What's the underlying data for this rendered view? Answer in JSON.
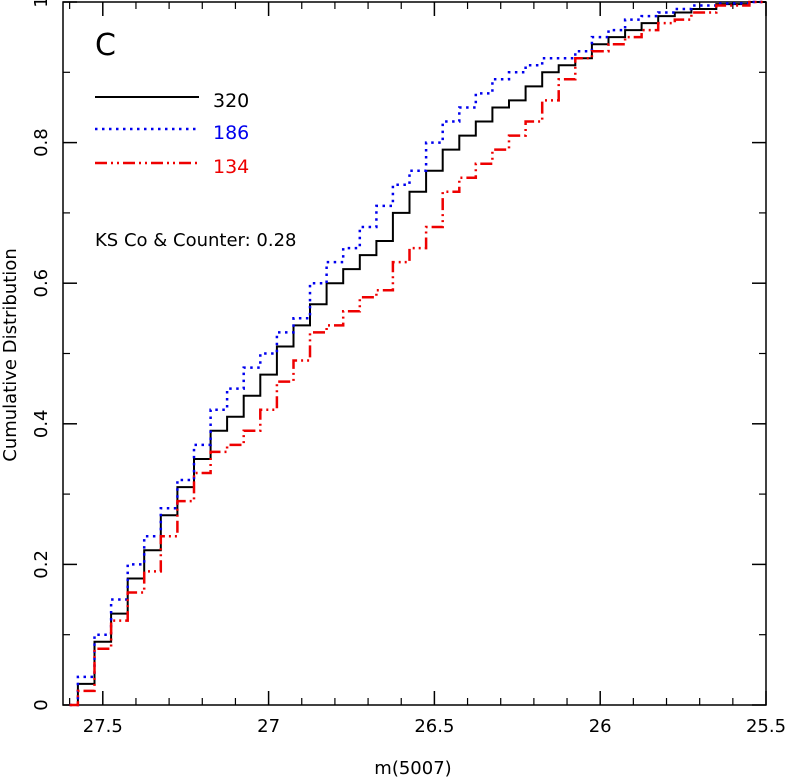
{
  "chart_data": {
    "type": "line",
    "panel_label": "C",
    "xlabel": "m(5007)",
    "ylabel": "Cumulative Distribution",
    "xlim": [
      27.62,
      25.5
    ],
    "ylim": [
      0,
      1.0
    ],
    "x_ticks": [
      27.5,
      27,
      26.5,
      26,
      25.5
    ],
    "x_tick_labels": [
      "27.5",
      "27",
      "26.5",
      "26",
      "25.5"
    ],
    "y_ticks": [
      0,
      0.2,
      0.4,
      0.6,
      0.8,
      1
    ],
    "y_tick_labels": [
      "0",
      "0.2",
      "0.4",
      "0.6",
      "0.8",
      "1"
    ],
    "annotation": "KS Co & Counter: 0.28",
    "legend_position": "top-left",
    "series": [
      {
        "name": "320",
        "color": "#000000",
        "dash": "solid",
        "x": [
          27.6,
          27.55,
          27.5,
          27.45,
          27.4,
          27.35,
          27.3,
          27.25,
          27.2,
          27.15,
          27.1,
          27.05,
          27.0,
          26.95,
          26.9,
          26.85,
          26.8,
          26.75,
          26.7,
          26.65,
          26.6,
          26.55,
          26.5,
          26.45,
          26.4,
          26.35,
          26.3,
          26.25,
          26.2,
          26.15,
          26.1,
          26.05,
          26.0,
          25.95,
          25.9,
          25.85,
          25.8,
          25.75,
          25.7,
          25.6,
          25.5
        ],
        "y": [
          0.0,
          0.03,
          0.09,
          0.13,
          0.18,
          0.22,
          0.27,
          0.31,
          0.35,
          0.39,
          0.41,
          0.44,
          0.47,
          0.51,
          0.54,
          0.57,
          0.6,
          0.62,
          0.64,
          0.66,
          0.7,
          0.73,
          0.76,
          0.79,
          0.81,
          0.83,
          0.85,
          0.86,
          0.88,
          0.9,
          0.91,
          0.92,
          0.94,
          0.95,
          0.96,
          0.97,
          0.98,
          0.985,
          0.99,
          0.997,
          1.0
        ]
      },
      {
        "name": "186",
        "color": "#0000ee",
        "dash": "dotted",
        "x": [
          27.6,
          27.55,
          27.5,
          27.45,
          27.4,
          27.35,
          27.3,
          27.25,
          27.2,
          27.15,
          27.1,
          27.05,
          27.0,
          26.95,
          26.9,
          26.85,
          26.8,
          26.75,
          26.7,
          26.65,
          26.6,
          26.55,
          26.5,
          26.45,
          26.4,
          26.35,
          26.3,
          26.25,
          26.2,
          26.15,
          26.1,
          26.05,
          26.0,
          25.95,
          25.9,
          25.85,
          25.8,
          25.75,
          25.7,
          25.6,
          25.5
        ],
        "y": [
          0.0,
          0.04,
          0.1,
          0.15,
          0.2,
          0.24,
          0.28,
          0.32,
          0.37,
          0.42,
          0.45,
          0.48,
          0.5,
          0.53,
          0.55,
          0.6,
          0.63,
          0.65,
          0.68,
          0.71,
          0.74,
          0.76,
          0.8,
          0.83,
          0.85,
          0.87,
          0.89,
          0.9,
          0.91,
          0.92,
          0.92,
          0.93,
          0.95,
          0.96,
          0.975,
          0.98,
          0.985,
          0.99,
          0.995,
          0.998,
          1.0
        ]
      },
      {
        "name": "134",
        "color": "#ee0000",
        "dash": "dash-dot-dot",
        "x": [
          27.6,
          27.55,
          27.5,
          27.45,
          27.4,
          27.35,
          27.3,
          27.25,
          27.2,
          27.15,
          27.1,
          27.05,
          27.0,
          26.95,
          26.9,
          26.85,
          26.8,
          26.75,
          26.7,
          26.65,
          26.6,
          26.55,
          26.5,
          26.45,
          26.4,
          26.35,
          26.3,
          26.25,
          26.2,
          26.15,
          26.1,
          26.05,
          26.0,
          25.95,
          25.9,
          25.85,
          25.8,
          25.75,
          25.7,
          25.6,
          25.5
        ],
        "y": [
          0.0,
          0.02,
          0.08,
          0.12,
          0.16,
          0.19,
          0.24,
          0.29,
          0.33,
          0.36,
          0.37,
          0.39,
          0.42,
          0.46,
          0.49,
          0.53,
          0.54,
          0.56,
          0.58,
          0.59,
          0.63,
          0.65,
          0.68,
          0.73,
          0.75,
          0.77,
          0.79,
          0.81,
          0.83,
          0.86,
          0.89,
          0.92,
          0.93,
          0.94,
          0.95,
          0.96,
          0.97,
          0.975,
          0.985,
          0.995,
          1.0
        ]
      }
    ]
  }
}
